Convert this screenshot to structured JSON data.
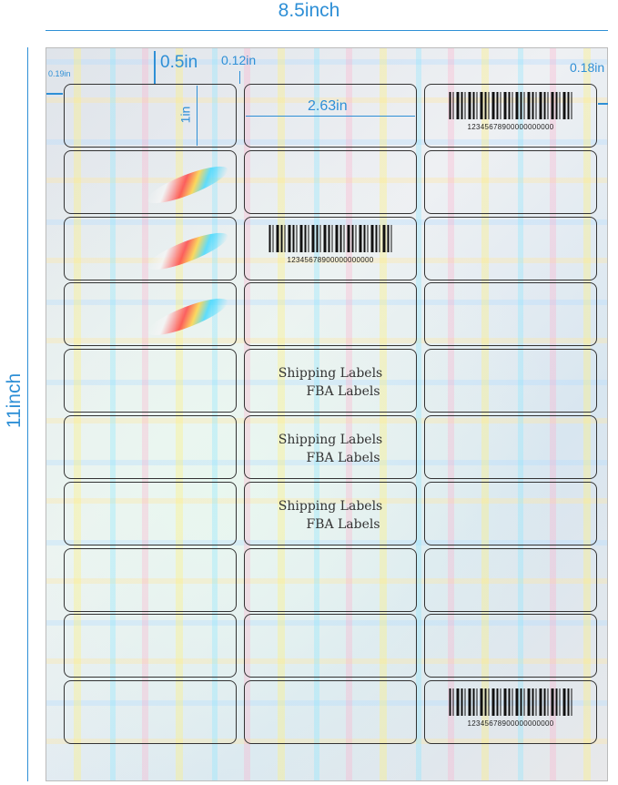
{
  "dimensions": {
    "width": "8.5inch",
    "height": "11inch",
    "top_margin": "0.5in",
    "left_margin": "0.19in",
    "gap": "0.12in",
    "right_margin": "0.18in",
    "label_width": "2.63in",
    "label_height": "1in"
  },
  "sheet": {
    "columns": 3,
    "rows": 10
  },
  "barcode_number": "12345678900000000000",
  "sample_text": {
    "line1": "Shipping Labels",
    "line2": "FBA Labels"
  },
  "colors": {
    "dimension": "#2e8fd6",
    "label_border": "#333333"
  }
}
